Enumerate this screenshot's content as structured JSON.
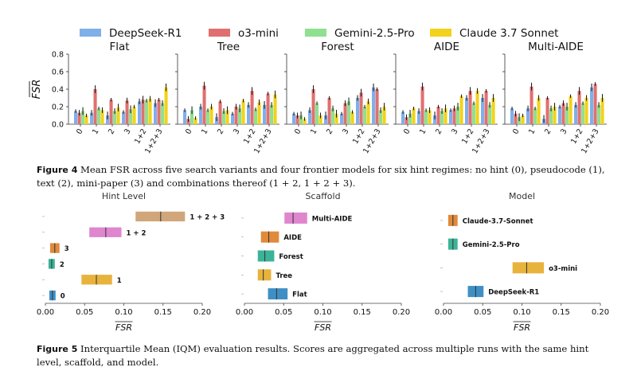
{
  "models": [
    {
      "name": "DeepSeek-R1",
      "color": "#7fb0e8"
    },
    {
      "name": "o3-mini",
      "color": "#e07070"
    },
    {
      "name": "Gemini-2.5-Pro",
      "color": "#8fe08f"
    },
    {
      "name": "Claude 3.7 Sonnet",
      "color": "#f2d21c"
    }
  ],
  "figure4_caption": {
    "label": "Figure 4",
    "text": "Mean FSR across five search variants and four frontier models for six hint regimes: no hint (0), pseudocode (1), text (2), mini-paper (3) and combinations thereof (1 + 2, 1 + 2 + 3)."
  },
  "figure5_caption": {
    "label": "Figure 5",
    "text": "Interquartile Mean (IQM) evaluation results. Scores are aggregated across multiple runs with the same hint level, scaffold, and model."
  },
  "chart_data": [
    {
      "type": "bar",
      "title": "Flat",
      "ylabel": "FSR",
      "ylim": [
        0,
        0.8
      ],
      "yticks": [
        "0.0",
        "0.2",
        "0.4",
        "0.6",
        "0.8"
      ],
      "categories": [
        "0",
        "1",
        "2",
        "3",
        "1+2",
        "1+2+3"
      ],
      "series": [
        {
          "name": "DeepSeek-R1",
          "values": [
            0.15,
            0.13,
            0.1,
            0.14,
            0.26,
            0.24
          ]
        },
        {
          "name": "o3-mini",
          "values": [
            0.13,
            0.4,
            0.28,
            0.27,
            0.28,
            0.28
          ]
        },
        {
          "name": "Gemini-2.5-Pro",
          "values": [
            0.15,
            0.18,
            0.15,
            0.17,
            0.27,
            0.24
          ]
        },
        {
          "name": "Claude 3.7 Sonnet",
          "values": [
            0.1,
            0.16,
            0.19,
            0.2,
            0.29,
            0.42
          ]
        }
      ]
    },
    {
      "type": "bar",
      "title": "Tree",
      "ylim": [
        0,
        0.8
      ],
      "categories": [
        "0",
        "1",
        "2",
        "3",
        "1+2",
        "1+2+3"
      ],
      "series": [
        {
          "name": "DeepSeek-R1",
          "values": [
            0.16,
            0.2,
            0.08,
            0.12,
            0.22,
            0.22
          ]
        },
        {
          "name": "o3-mini",
          "values": [
            0.06,
            0.44,
            0.26,
            0.2,
            0.38,
            0.35
          ]
        },
        {
          "name": "Gemini-2.5-Pro",
          "values": [
            0.16,
            0.16,
            0.15,
            0.18,
            0.17,
            0.22
          ]
        },
        {
          "name": "Claude 3.7 Sonnet",
          "values": [
            0.07,
            0.2,
            0.16,
            0.27,
            0.25,
            0.34
          ]
        }
      ]
    },
    {
      "type": "bar",
      "title": "Forest",
      "ylim": [
        0,
        0.8
      ],
      "categories": [
        "0",
        "1",
        "2",
        "3",
        "1+2",
        "1+2+3"
      ],
      "series": [
        {
          "name": "DeepSeek-R1",
          "values": [
            0.12,
            0.16,
            0.1,
            0.12,
            0.3,
            0.42
          ]
        },
        {
          "name": "o3-mini",
          "values": [
            0.1,
            0.4,
            0.3,
            0.24,
            0.36,
            0.4
          ]
        },
        {
          "name": "Gemini-2.5-Pro",
          "values": [
            0.1,
            0.24,
            0.18,
            0.26,
            0.2,
            0.16
          ]
        },
        {
          "name": "Claude 3.7 Sonnet",
          "values": [
            0.06,
            0.1,
            0.12,
            0.14,
            0.26,
            0.2
          ]
        }
      ]
    },
    {
      "type": "bar",
      "title": "AIDE",
      "ylim": [
        0,
        0.8
      ],
      "categories": [
        "0",
        "1",
        "2",
        "3",
        "1+2",
        "1+2+3"
      ],
      "series": [
        {
          "name": "DeepSeek-R1",
          "values": [
            0.14,
            0.15,
            0.1,
            0.16,
            0.3,
            0.3
          ]
        },
        {
          "name": "o3-mini",
          "values": [
            0.08,
            0.43,
            0.2,
            0.18,
            0.38,
            0.38
          ]
        },
        {
          "name": "Gemini-2.5-Pro",
          "values": [
            0.12,
            0.16,
            0.15,
            0.2,
            0.24,
            0.22
          ]
        },
        {
          "name": "Claude 3.7 Sonnet",
          "values": [
            0.18,
            0.16,
            0.18,
            0.32,
            0.38,
            0.3
          ]
        }
      ]
    },
    {
      "type": "bar",
      "title": "Multi-AIDE",
      "ylim": [
        0,
        0.8
      ],
      "categories": [
        "0",
        "1",
        "2",
        "3",
        "1+2",
        "1+2+3"
      ],
      "series": [
        {
          "name": "DeepSeek-R1",
          "values": [
            0.18,
            0.18,
            0.06,
            0.2,
            0.22,
            0.42
          ]
        },
        {
          "name": "o3-mini",
          "values": [
            0.12,
            0.43,
            0.3,
            0.24,
            0.38,
            0.46
          ]
        },
        {
          "name": "Gemini-2.5-Pro",
          "values": [
            0.08,
            0.18,
            0.18,
            0.2,
            0.24,
            0.22
          ]
        },
        {
          "name": "Claude 3.7 Sonnet",
          "values": [
            0.1,
            0.3,
            0.2,
            0.32,
            0.3,
            0.3
          ]
        }
      ]
    },
    {
      "type": "bar",
      "orientation": "horizontal",
      "title": "Hint Level",
      "xlabel": "FSR",
      "xlim": [
        0,
        0.2
      ],
      "xticks": [
        "0.00",
        "0.05",
        "0.10",
        "0.15",
        "0.20"
      ],
      "items": [
        {
          "label": "1 + 2 + 3",
          "low": 0.115,
          "high": 0.178,
          "mid": 0.147,
          "color": "#d0a67a"
        },
        {
          "label": "1 + 2",
          "low": 0.056,
          "high": 0.097,
          "mid": 0.077,
          "color": "#df86cf"
        },
        {
          "label": "3",
          "low": 0.006,
          "high": 0.018,
          "mid": 0.012,
          "color": "#e08a3c"
        },
        {
          "label": "2",
          "low": 0.004,
          "high": 0.012,
          "mid": 0.008,
          "color": "#3cb398"
        },
        {
          "label": "1",
          "low": 0.046,
          "high": 0.085,
          "mid": 0.065,
          "color": "#e8b33c"
        },
        {
          "label": "0",
          "low": 0.005,
          "high": 0.013,
          "mid": 0.009,
          "color": "#3f8fc4"
        }
      ]
    },
    {
      "type": "bar",
      "orientation": "horizontal",
      "title": "Scaffold",
      "xlabel": "FSR",
      "xlim": [
        0,
        0.2
      ],
      "xticks": [
        "0.00",
        "0.05",
        "0.10",
        "0.15",
        "0.20"
      ],
      "items": [
        {
          "label": "Multi-AIDE",
          "low": 0.051,
          "high": 0.08,
          "mid": 0.062,
          "color": "#df86cf"
        },
        {
          "label": "AIDE",
          "low": 0.021,
          "high": 0.044,
          "mid": 0.031,
          "color": "#e08a3c"
        },
        {
          "label": "Forest",
          "low": 0.017,
          "high": 0.038,
          "mid": 0.026,
          "color": "#3cb398"
        },
        {
          "label": "Tree",
          "low": 0.017,
          "high": 0.034,
          "mid": 0.024,
          "color": "#e8b33c"
        },
        {
          "label": "Flat",
          "low": 0.03,
          "high": 0.055,
          "mid": 0.041,
          "color": "#3f8fc4"
        }
      ]
    },
    {
      "type": "bar",
      "orientation": "horizontal",
      "title": "Model",
      "xlabel": "FSR",
      "xlim": [
        0,
        0.2
      ],
      "xticks": [
        "0.00",
        "0.05",
        "0.10",
        "0.15",
        "0.20"
      ],
      "items": [
        {
          "label": "Claude-3.7-Sonnet",
          "low": 0.006,
          "high": 0.018,
          "mid": 0.012,
          "color": "#e08a3c"
        },
        {
          "label": "Gemini-2.5-Pro",
          "low": 0.006,
          "high": 0.018,
          "mid": 0.012,
          "color": "#3cb398"
        },
        {
          "label": "o3-mini",
          "low": 0.088,
          "high": 0.128,
          "mid": 0.106,
          "color": "#e8b33c"
        },
        {
          "label": "DeepSeek-R1",
          "low": 0.031,
          "high": 0.051,
          "mid": 0.041,
          "color": "#3f8fc4"
        }
      ]
    }
  ]
}
